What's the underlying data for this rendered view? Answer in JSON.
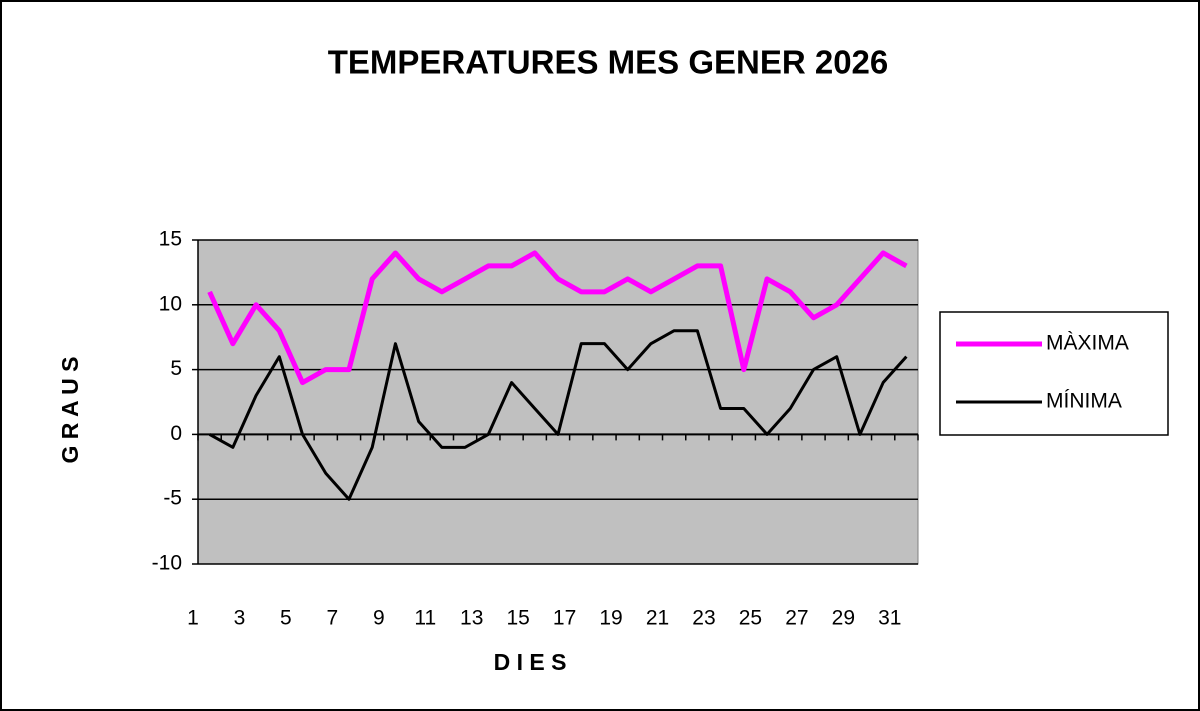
{
  "chart_data": {
    "type": "line",
    "title": "TEMPERATURES MES GENER 2026",
    "x_label": "D I E S",
    "y_label": "G R A U S",
    "categories": [
      "1",
      null,
      "3",
      null,
      "5",
      null,
      "7",
      null,
      "9",
      null,
      "11",
      null,
      "13",
      null,
      "15",
      null,
      "17",
      null,
      "19",
      null,
      "21",
      null,
      "23",
      null,
      "25",
      null,
      "27",
      null,
      "29",
      null,
      "31"
    ],
    "series": [
      {
        "name": "MÀXIMA",
        "color": "#ff00ff",
        "values": [
          11,
          7,
          10,
          8,
          4,
          5,
          5,
          12,
          14,
          12,
          11,
          12,
          13,
          13,
          14,
          12,
          11,
          11,
          12,
          11,
          12,
          13,
          13,
          5,
          12,
          11,
          9,
          10,
          12,
          14,
          13
        ]
      },
      {
        "name": "MÍNIMA",
        "color": "#000000",
        "values": [
          0,
          -1,
          3,
          6,
          0,
          -3,
          -5,
          -1,
          7,
          1,
          -1,
          -1,
          0,
          4,
          2,
          0,
          7,
          7,
          5,
          7,
          8,
          8,
          2,
          2,
          0,
          2,
          5,
          6,
          0,
          4,
          6
        ]
      }
    ],
    "ylim": [
      -10,
      15
    ],
    "yticks": [
      -10,
      -5,
      0,
      5,
      10,
      15
    ],
    "grid": true,
    "legend": "right"
  }
}
